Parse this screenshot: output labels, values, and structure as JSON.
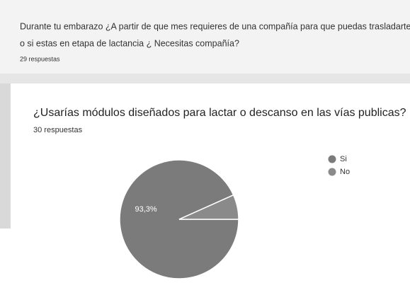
{
  "top_card": {
    "question": "Durante tu embarazo ¿A partir de que mes requieres de una compañía para que puedas trasladarte?",
    "question_line2": "o si estas en etapa de lactancia ¿ Necesitas compañía?",
    "responses": "29 respuestas"
  },
  "chart_data": {
    "type": "pie",
    "title": "¿Usarías módulos diseñados para lactar o descanso en las vías publicas?",
    "subtitle": "30 respuestas",
    "categories": [
      "Si",
      "No"
    ],
    "values": [
      93.3,
      6.7
    ],
    "value_labels": [
      "93,3%",
      null
    ],
    "colors": [
      "#7b7b7b",
      "#8a8a8a"
    ],
    "legend": "right"
  }
}
